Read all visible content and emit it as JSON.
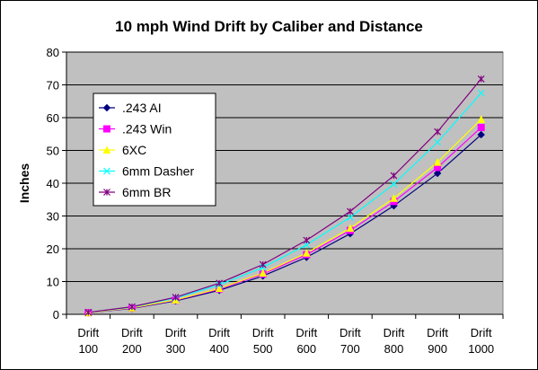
{
  "chart_data": {
    "type": "line",
    "title": "10 mph Wind Drift by Caliber and Distance",
    "xlabel": "",
    "ylabel": "Inches",
    "ylim": [
      0,
      80
    ],
    "yticks": [
      0,
      10,
      20,
      30,
      40,
      50,
      60,
      70,
      80
    ],
    "categories": [
      [
        "Drift",
        "100"
      ],
      [
        "Drift",
        "200"
      ],
      [
        "Drift",
        "300"
      ],
      [
        "Drift",
        "400"
      ],
      [
        "Drift",
        "500"
      ],
      [
        "Drift",
        "600"
      ],
      [
        "Drift",
        "700"
      ],
      [
        "Drift",
        "800"
      ],
      [
        "Drift",
        "900"
      ],
      [
        "Drift",
        "1000"
      ]
    ],
    "grid": true,
    "legend_position": "top-left",
    "plot_background": "#c0c0c0",
    "series": [
      {
        "name": ".243 AI",
        "color": "#000080",
        "marker": "diamond",
        "values": [
          0.5,
          1.8,
          4.1,
          7.3,
          11.7,
          17.4,
          24.6,
          33.1,
          43.0,
          54.8
        ]
      },
      {
        "name": ".243 Win",
        "color": "#ff00ff",
        "marker": "square",
        "values": [
          0.5,
          1.9,
          4.3,
          7.7,
          12.3,
          18.2,
          25.6,
          34.4,
          44.8,
          57.0
        ]
      },
      {
        "name": "6XC",
        "color": "#ffff00",
        "marker": "triangle",
        "values": [
          0.5,
          2.0,
          4.4,
          7.9,
          12.6,
          18.7,
          26.3,
          35.4,
          46.4,
          59.5
        ]
      },
      {
        "name": "6mm Dasher",
        "color": "#00ffff",
        "marker": "x",
        "values": [
          0.6,
          2.2,
          5.0,
          9.0,
          14.3,
          21.2,
          29.6,
          39.7,
          52.5,
          67.5
        ]
      },
      {
        "name": "6mm BR",
        "color": "#800080",
        "marker": "star",
        "values": [
          0.6,
          2.3,
          5.2,
          9.5,
          15.2,
          22.6,
          31.4,
          42.3,
          55.7,
          71.8
        ]
      }
    ]
  }
}
